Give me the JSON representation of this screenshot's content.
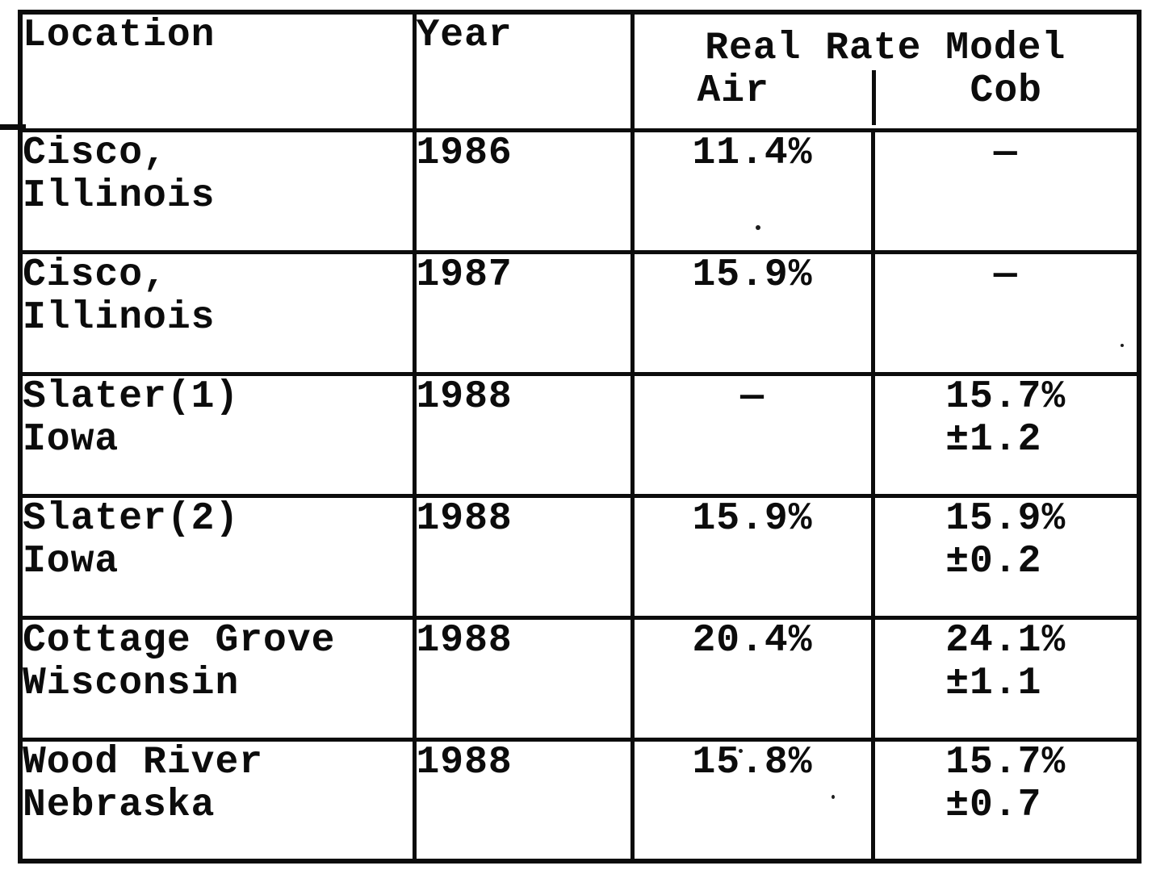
{
  "colors": {
    "ink": "#0c0c0c",
    "paper": "#ffffff"
  },
  "table": {
    "header": {
      "location": "Location",
      "year": "Year",
      "group": "Real Rate Model",
      "air": "Air",
      "cob": "Cob"
    },
    "rows": [
      {
        "loc1": "Cisco,",
        "loc2": "Illinois",
        "year": "1986",
        "air": "11.4%",
        "cob": "—",
        "cob_err": ""
      },
      {
        "loc1": "Cisco,",
        "loc2": "Illinois",
        "year": "1987",
        "air": "15.9%",
        "cob": "—",
        "cob_err": ""
      },
      {
        "loc1": "Slater(1)",
        "loc2": "Iowa",
        "year": "1988",
        "air": "—",
        "cob": "15.7%",
        "cob_err": "±1.2"
      },
      {
        "loc1": "Slater(2)",
        "loc2": "Iowa",
        "year": "1988",
        "air": "15.9%",
        "cob": "15.9%",
        "cob_err": "±0.2"
      },
      {
        "loc1": "Cottage Grove",
        "loc2": "Wisconsin",
        "year": "1988",
        "air": "20.4%",
        "cob": "24.1%",
        "cob_err": "±1.1"
      },
      {
        "loc1": "Wood River",
        "loc2": "Nebraska",
        "year": "1988",
        "air": "15.8%",
        "cob": "15.7%",
        "cob_err": "±0.7"
      }
    ]
  }
}
